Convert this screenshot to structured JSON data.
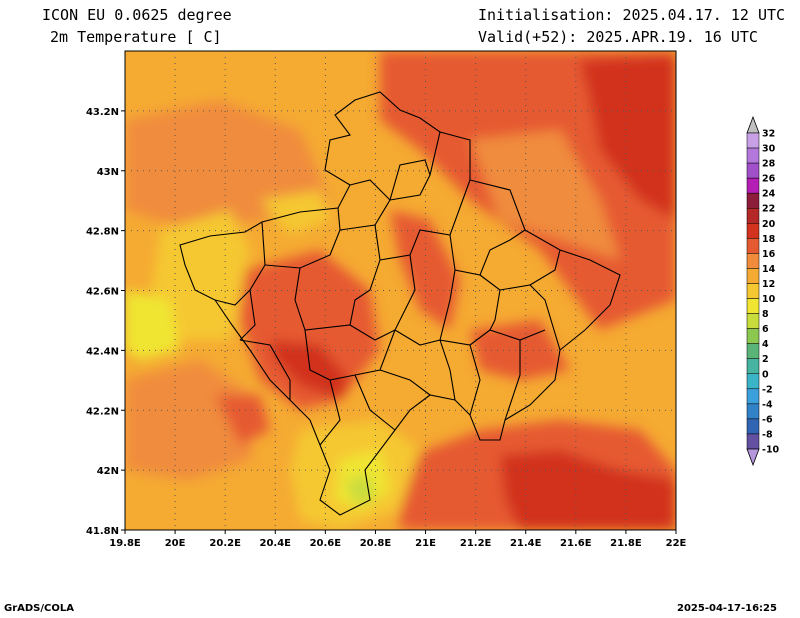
{
  "header": {
    "title_line1": "ICON EU 0.0625 degree",
    "title_line2": "2m Temperature [ C]",
    "init": "Initialisation: 2025.04.17. 12 UTC",
    "valid": "Valid(+52): 2025.APR.19. 16 UTC"
  },
  "footer": {
    "credit": "GrADS/COLA",
    "timestamp": "2025-04-17-16:25"
  },
  "map": {
    "lon_range": [
      19.8,
      22.0
    ],
    "lat_range": [
      41.8,
      43.4
    ],
    "lon_ticks": [
      "19.8E",
      "20E",
      "20.2E",
      "20.4E",
      "20.6E",
      "20.8E",
      "21E",
      "21.2E",
      "21.4E",
      "21.6E",
      "21.8E",
      "22E"
    ],
    "lat_ticks": [
      "41.8N",
      "42N",
      "42.2N",
      "42.4N",
      "42.6N",
      "42.8N",
      "43N",
      "43.2N"
    ],
    "lat_tick_values": [
      41.8,
      42.0,
      42.2,
      42.4,
      42.6,
      42.8,
      43.0,
      43.2
    ],
    "lon_tick_values": [
      19.8,
      20.0,
      20.2,
      20.4,
      20.6,
      20.8,
      21.0,
      21.2,
      21.4,
      21.6,
      21.8,
      22.0
    ]
  },
  "colorbar": {
    "labels": [
      "32",
      "30",
      "28",
      "26",
      "24",
      "22",
      "20",
      "18",
      "16",
      "14",
      "12",
      "10",
      "8",
      "6",
      "4",
      "2",
      "0",
      "-2",
      "-4",
      "-6",
      "-8",
      "-10"
    ],
    "colors": [
      "#c8a0e6",
      "#b478dc",
      "#a050c8",
      "#b41eb4",
      "#8c1e3c",
      "#b42828",
      "#d2321e",
      "#e65a32",
      "#f08c3c",
      "#f5aa32",
      "#f5c832",
      "#f0e632",
      "#c8dc3c",
      "#8cc850",
      "#5ab478",
      "#46b4a0",
      "#3cb4c8",
      "#3ca0dc",
      "#3282c8",
      "#3264b4",
      "#6450a0"
    ],
    "arrow_top_color": "#c0c0c0",
    "arrow_bottom_color": "#b496dc"
  }
}
